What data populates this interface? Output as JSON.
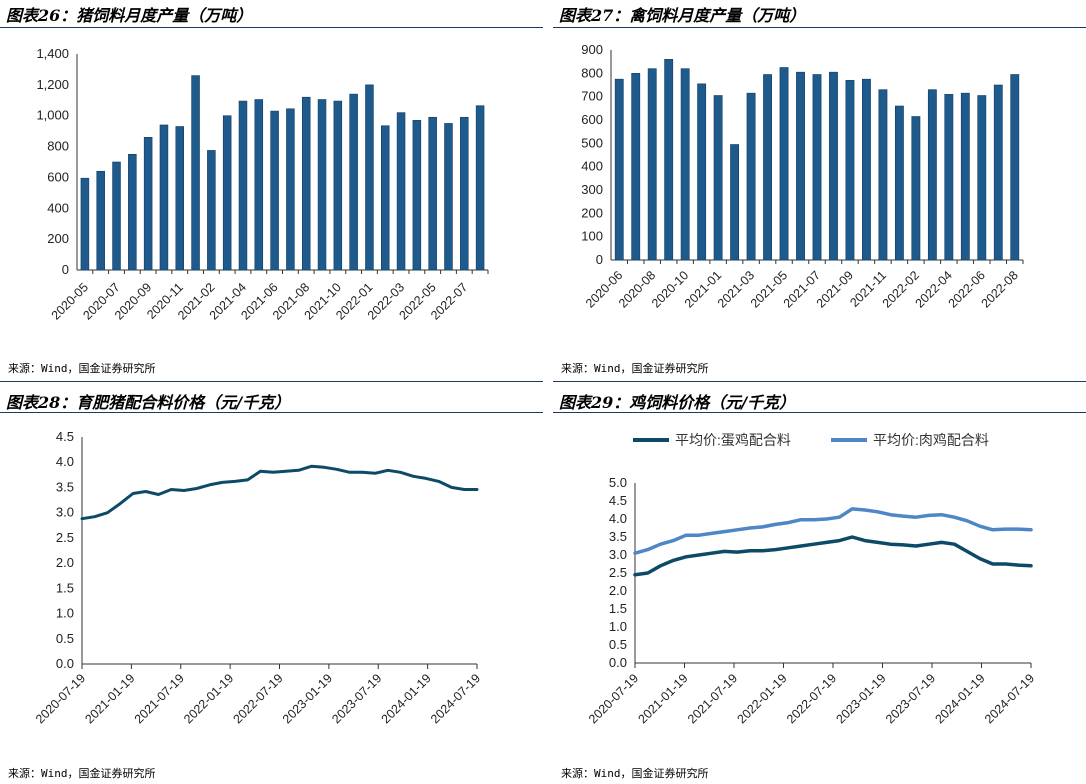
{
  "colors": {
    "bar": "#1f5a8c",
    "bar_edge": "#123c63",
    "dark_line": "#0d4a68",
    "light_line": "#4f86c6",
    "rule": "#1f3a5f"
  },
  "panels": [
    {
      "title": "图表26：猪饲料月度产量（万吨）",
      "source": "来源：Wind，国金证券研究所",
      "chart_data": {
        "type": "bar",
        "ylim": [
          0,
          1400
        ],
        "yticks": [
          "0",
          "200",
          "400",
          "600",
          "800",
          "1,000",
          "1,200",
          "1,400"
        ],
        "xtick_labels": [
          "2020-05",
          "2020-07",
          "2020-09",
          "2020-11",
          "2021-02",
          "2021-04",
          "2021-06",
          "2021-08",
          "2021-10",
          "2022-01",
          "2022-03",
          "2022-05",
          "2022-07"
        ],
        "values": [
          595,
          640,
          700,
          750,
          860,
          940,
          930,
          1260,
          775,
          1000,
          1095,
          1105,
          1030,
          1045,
          1120,
          1105,
          1095,
          1140,
          1200,
          935,
          1020,
          970,
          990,
          950,
          990,
          1065
        ]
      }
    },
    {
      "title": "图表27：禽饲料月度产量（万吨）",
      "source": "来源：Wind，国金证券研究所",
      "chart_data": {
        "type": "bar",
        "ylim": [
          0,
          900
        ],
        "yticks": [
          "0",
          "100",
          "200",
          "300",
          "400",
          "500",
          "600",
          "700",
          "800",
          "900"
        ],
        "xtick_labels": [
          "2020-06",
          "2020-08",
          "2020-10",
          "2021-01",
          "2021-03",
          "2021-05",
          "2021-07",
          "2021-09",
          "2021-11",
          "2022-02",
          "2022-04",
          "2022-06",
          "2022-08"
        ],
        "values": [
          775,
          800,
          820,
          860,
          820,
          755,
          705,
          495,
          715,
          795,
          825,
          805,
          795,
          805,
          770,
          775,
          730,
          660,
          615,
          730,
          710,
          715,
          705,
          750,
          795
        ]
      }
    },
    {
      "title": "图表28：育肥猪配合料价格（元/千克）",
      "source": "来源：Wind，国金证券研究所",
      "chart_data": {
        "type": "line",
        "ylim": [
          0,
          4.5
        ],
        "yticks": [
          "0.0",
          "0.5",
          "1.0",
          "1.5",
          "2.0",
          "2.5",
          "3.0",
          "3.5",
          "4.0",
          "4.5"
        ],
        "xtick_labels": [
          "2020-07-19",
          "2021-01-19",
          "2021-07-19",
          "2022-01-19",
          "2022-07-19",
          "2023-01-19",
          "2023-07-19",
          "2024-01-19",
          "2024-07-19"
        ],
        "series": [
          {
            "values": [
              2.88,
              2.92,
              3.0,
              3.18,
              3.38,
              3.42,
              3.36,
              3.46,
              3.44,
              3.48,
              3.55,
              3.6,
              3.62,
              3.65,
              3.82,
              3.8,
              3.82,
              3.84,
              3.92,
              3.9,
              3.86,
              3.8,
              3.8,
              3.78,
              3.84,
              3.8,
              3.72,
              3.68,
              3.62,
              3.5,
              3.46,
              3.46
            ]
          }
        ]
      }
    },
    {
      "title": "图表29：鸡饲料价格（元/千克）",
      "source": "来源：Wind，国金证券研究所",
      "chart_data": {
        "type": "line",
        "ylim": [
          0,
          5.0
        ],
        "yticks": [
          "0.0",
          "0.5",
          "1.0",
          "1.5",
          "2.0",
          "2.5",
          "3.0",
          "3.5",
          "4.0",
          "4.5",
          "5.0"
        ],
        "xtick_labels": [
          "2020-07-19",
          "2021-01-19",
          "2021-07-19",
          "2022-01-19",
          "2022-07-19",
          "2023-01-19",
          "2023-07-19",
          "2024-01-19",
          "2024-07-19"
        ],
        "legend_position": "top",
        "series": [
          {
            "name": "平均价:蛋鸡配合料",
            "values": [
              2.45,
              2.5,
              2.7,
              2.85,
              2.95,
              3.0,
              3.05,
              3.1,
              3.08,
              3.12,
              3.12,
              3.15,
              3.2,
              3.25,
              3.3,
              3.35,
              3.4,
              3.5,
              3.4,
              3.35,
              3.3,
              3.28,
              3.25,
              3.3,
              3.35,
              3.3,
              3.1,
              2.9,
              2.75,
              2.75,
              2.72,
              2.7
            ]
          },
          {
            "name": "平均价:肉鸡配合料",
            "values": [
              3.05,
              3.15,
              3.3,
              3.4,
              3.55,
              3.55,
              3.6,
              3.65,
              3.7,
              3.75,
              3.78,
              3.85,
              3.9,
              3.98,
              3.98,
              4.0,
              4.05,
              4.28,
              4.25,
              4.2,
              4.12,
              4.08,
              4.05,
              4.1,
              4.12,
              4.05,
              3.95,
              3.8,
              3.7,
              3.72,
              3.72,
              3.7
            ]
          }
        ]
      }
    }
  ]
}
